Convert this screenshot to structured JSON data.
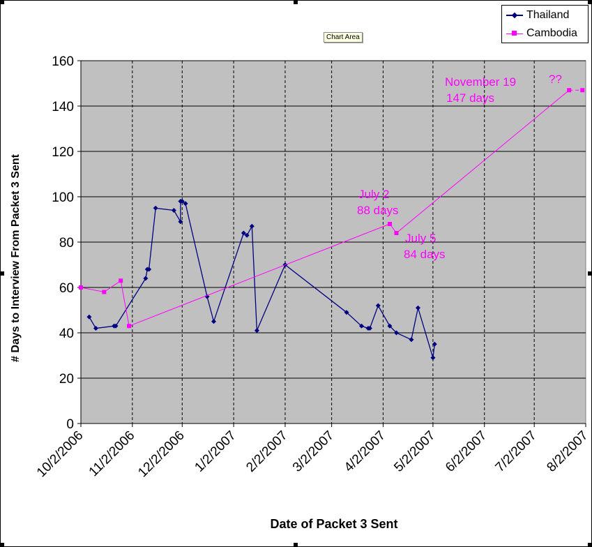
{
  "tooltip": "Chart Area",
  "colors": {
    "plot_bg": "#C0C0C0",
    "thailand": "#000080",
    "cambodia": "#FF00FF",
    "grid": "#000000"
  },
  "chart_data": {
    "type": "line",
    "title": "",
    "xlabel": "Date of Packet 3 Sent",
    "ylabel": "# Days to Interview From Packet 3 Sent",
    "xlim": [
      "2006-10-02",
      "2007-08-02"
    ],
    "ylim": [
      0,
      160
    ],
    "yticks": [
      0,
      20,
      40,
      60,
      80,
      100,
      120,
      140,
      160
    ],
    "xtick_labels": [
      "10/2/2006",
      "11/2/2006",
      "12/2/2006",
      "1/2/2007",
      "2/2/2007",
      "3/2/2007",
      "4/2/2007",
      "5/2/2007",
      "6/2/2007",
      "7/2/2007",
      "8/2/2007"
    ],
    "grid": {
      "horizontal": "solid",
      "vertical": "dashed"
    },
    "legend": {
      "position": "top-right",
      "entries": [
        "Thailand",
        "Cambodia"
      ]
    },
    "series": [
      {
        "name": "Thailand",
        "marker": "diamond",
        "points": [
          [
            "2006-10-07",
            47
          ],
          [
            "2006-10-11",
            42
          ],
          [
            "2006-10-22",
            43
          ],
          [
            "2006-10-23",
            43
          ],
          [
            "2006-11-10",
            64
          ],
          [
            "2006-11-11",
            68
          ],
          [
            "2006-11-12",
            68
          ],
          [
            "2006-11-16",
            95
          ],
          [
            "2006-11-27",
            94
          ],
          [
            "2006-12-01",
            89
          ],
          [
            "2006-12-01",
            98
          ],
          [
            "2006-12-02",
            98
          ],
          [
            "2006-12-04",
            97
          ],
          [
            "2006-12-17",
            56
          ],
          [
            "2006-12-21",
            45
          ],
          [
            "2007-01-08",
            84
          ],
          [
            "2007-01-10",
            83
          ],
          [
            "2007-01-13",
            87
          ],
          [
            "2007-01-16",
            41
          ],
          [
            "2007-02-02",
            70
          ],
          [
            "2007-03-11",
            49
          ],
          [
            "2007-03-20",
            43
          ],
          [
            "2007-03-24",
            42
          ],
          [
            "2007-03-25",
            42
          ],
          [
            "2007-03-30",
            52
          ],
          [
            "2007-04-06",
            43
          ],
          [
            "2007-04-10",
            40
          ],
          [
            "2007-04-19",
            37
          ],
          [
            "2007-04-23",
            51
          ],
          [
            "2007-05-02",
            29
          ],
          [
            "2007-05-03",
            35
          ]
        ]
      },
      {
        "name": "Cambodia",
        "marker": "square",
        "points": [
          [
            "2006-10-02",
            60
          ],
          [
            "2006-10-16",
            58
          ],
          [
            "2006-10-26",
            63
          ],
          [
            "2006-10-31",
            43
          ],
          [
            "2007-04-06",
            88
          ],
          [
            "2007-04-10",
            84
          ],
          [
            "2007-07-23",
            147
          ]
        ],
        "dashed_extension": [
          [
            "2007-07-23",
            147
          ],
          [
            "2007-07-31",
            147
          ]
        ]
      }
    ],
    "annotations": [
      {
        "text": "November 19",
        "series": "Cambodia"
      },
      {
        "text": "147 days",
        "series": "Cambodia"
      },
      {
        "text": "??",
        "series": "Cambodia"
      },
      {
        "text": "July 2",
        "series": "Cambodia"
      },
      {
        "text": "88 days",
        "series": "Cambodia"
      },
      {
        "text": "July 5",
        "series": "Cambodia"
      },
      {
        "text": "84 days",
        "series": "Cambodia"
      }
    ]
  }
}
